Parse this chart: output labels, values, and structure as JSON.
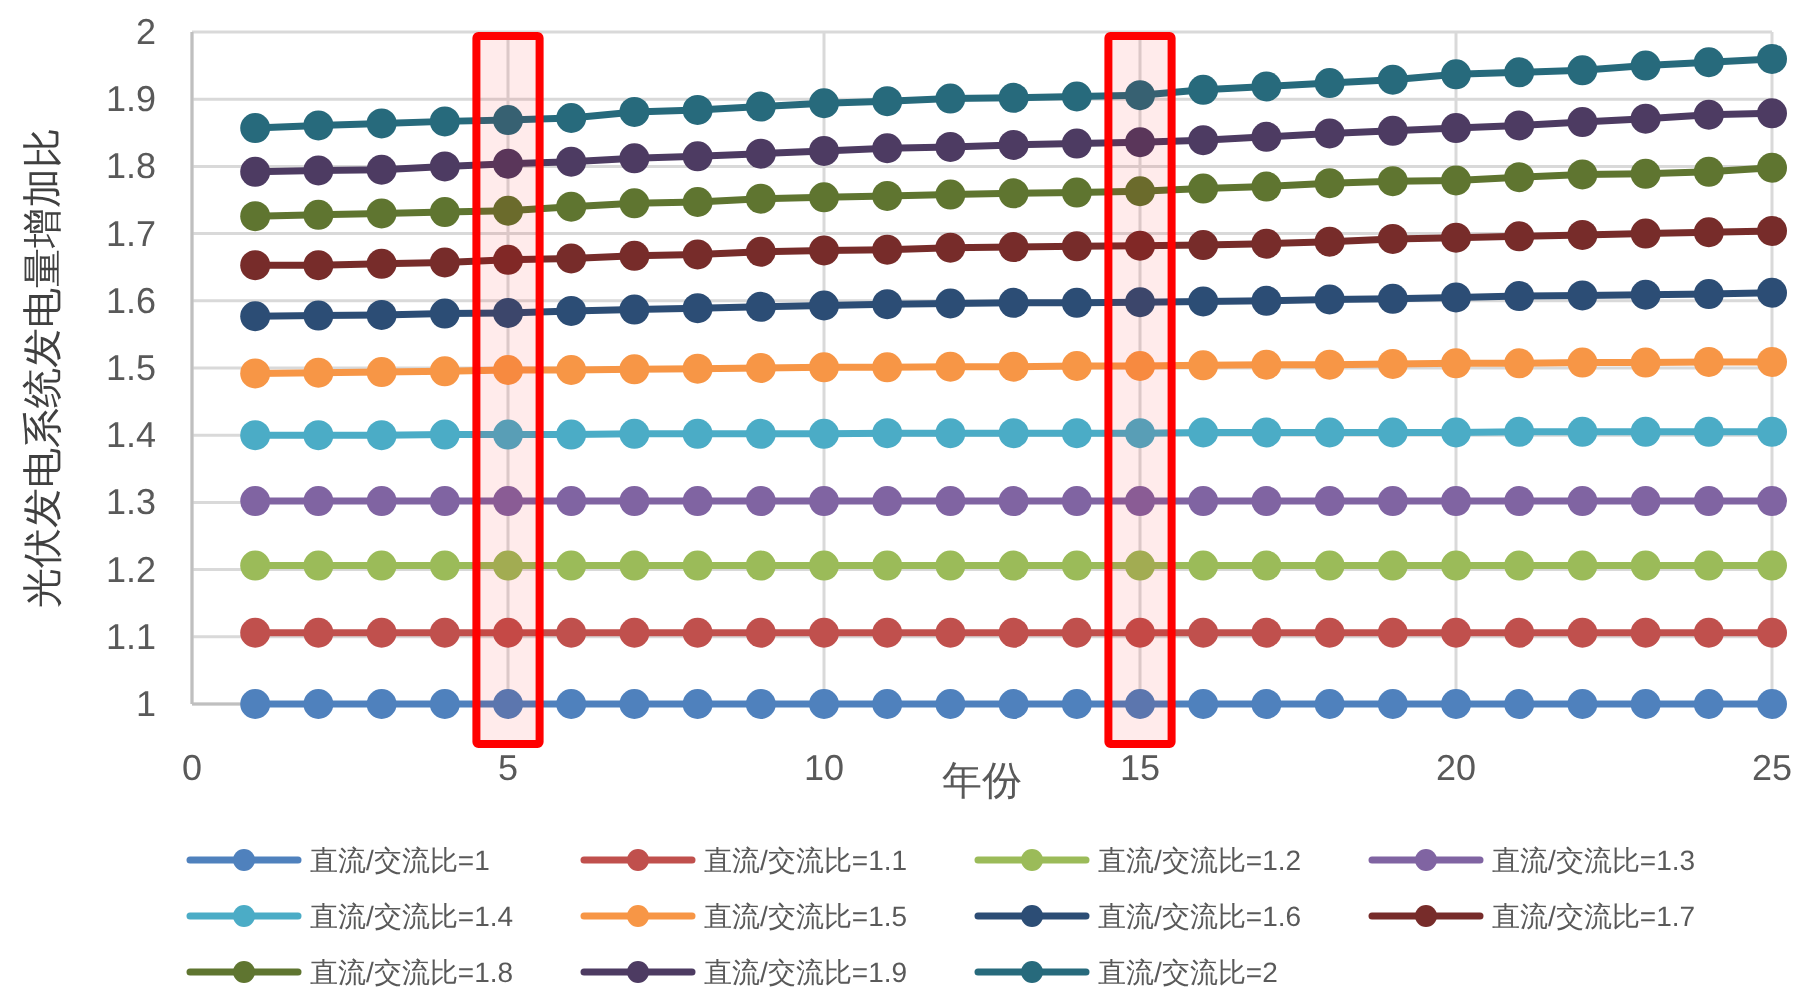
{
  "chart_data": {
    "type": "line",
    "xlabel": "年份",
    "ylabel": "光伏发电系统发电量增加比",
    "x": [
      1,
      2,
      3,
      4,
      5,
      6,
      7,
      8,
      9,
      10,
      11,
      12,
      13,
      14,
      15,
      16,
      17,
      18,
      19,
      20,
      21,
      22,
      23,
      24,
      25
    ],
    "xlim": [
      0,
      25
    ],
    "xticks": [
      0,
      5,
      10,
      15,
      20,
      25
    ],
    "ylim": [
      1,
      2
    ],
    "yticks": [
      1,
      1.1,
      1.2,
      1.3,
      1.4,
      1.5,
      1.6,
      1.7,
      1.8,
      1.9,
      2
    ],
    "grid": true,
    "legend": "bottom",
    "marker": "circle",
    "line_style": "solid",
    "bands": [
      {
        "axis": "x",
        "from": 4.5,
        "to": 5.5,
        "color": "#ff0000"
      },
      {
        "axis": "x",
        "from": 14.5,
        "to": 15.5,
        "color": "#ff0000"
      }
    ],
    "series": [
      {
        "name": "直流/交流比=1",
        "color": "#4f81bd",
        "values": [
          1,
          1,
          1,
          1,
          1,
          1,
          1,
          1,
          1,
          1,
          1,
          1,
          1,
          1,
          1,
          1,
          1,
          1,
          1,
          1,
          1,
          1,
          1,
          1,
          1
        ]
      },
      {
        "name": "直流/交流比=1.1",
        "color": "#c0504d",
        "values": [
          1.106,
          1.106,
          1.106,
          1.106,
          1.106,
          1.106,
          1.106,
          1.106,
          1.106,
          1.106,
          1.106,
          1.106,
          1.106,
          1.106,
          1.106,
          1.106,
          1.106,
          1.106,
          1.106,
          1.106,
          1.106,
          1.106,
          1.106,
          1.106,
          1.106
        ]
      },
      {
        "name": "直流/交流比=1.2",
        "color": "#9bbb59",
        "values": [
          1.206,
          1.206,
          1.206,
          1.206,
          1.206,
          1.206,
          1.206,
          1.206,
          1.206,
          1.206,
          1.206,
          1.206,
          1.206,
          1.206,
          1.206,
          1.206,
          1.206,
          1.206,
          1.206,
          1.206,
          1.206,
          1.206,
          1.206,
          1.206,
          1.206
        ]
      },
      {
        "name": "直流/交流比=1.3",
        "color": "#8064a2",
        "values": [
          1.302,
          1.302,
          1.302,
          1.302,
          1.302,
          1.302,
          1.302,
          1.302,
          1.302,
          1.302,
          1.302,
          1.302,
          1.302,
          1.302,
          1.302,
          1.302,
          1.302,
          1.302,
          1.302,
          1.302,
          1.302,
          1.302,
          1.302,
          1.302,
          1.302
        ]
      },
      {
        "name": "直流/交流比=1.4",
        "color": "#4bacc6",
        "values": [
          1.4,
          1.4,
          1.4,
          1.401,
          1.401,
          1.401,
          1.402,
          1.402,
          1.402,
          1.402,
          1.403,
          1.403,
          1.403,
          1.403,
          1.403,
          1.404,
          1.404,
          1.404,
          1.404,
          1.404,
          1.405,
          1.405,
          1.405,
          1.405,
          1.405
        ]
      },
      {
        "name": "直流/交流比=1.5",
        "color": "#f79646",
        "values": [
          1.492,
          1.493,
          1.494,
          1.495,
          1.497,
          1.497,
          1.498,
          1.499,
          1.5,
          1.501,
          1.501,
          1.502,
          1.502,
          1.503,
          1.503,
          1.504,
          1.505,
          1.505,
          1.506,
          1.507,
          1.507,
          1.508,
          1.508,
          1.509,
          1.509
        ]
      },
      {
        "name": "直流/交流比=1.6",
        "color": "#2c4d75",
        "values": [
          1.577,
          1.578,
          1.579,
          1.581,
          1.582,
          1.585,
          1.587,
          1.589,
          1.591,
          1.593,
          1.595,
          1.596,
          1.597,
          1.597,
          1.598,
          1.599,
          1.6,
          1.602,
          1.603,
          1.605,
          1.607,
          1.608,
          1.609,
          1.61,
          1.612
        ]
      },
      {
        "name": "直流/交流比=1.7",
        "color": "#772c2a",
        "values": [
          1.653,
          1.653,
          1.655,
          1.657,
          1.661,
          1.663,
          1.667,
          1.669,
          1.673,
          1.675,
          1.676,
          1.679,
          1.68,
          1.681,
          1.682,
          1.683,
          1.685,
          1.688,
          1.692,
          1.694,
          1.696,
          1.698,
          1.7,
          1.702,
          1.704
        ]
      },
      {
        "name": "直流/交流比=1.8",
        "color": "#5f7530",
        "values": [
          1.726,
          1.728,
          1.73,
          1.732,
          1.734,
          1.74,
          1.745,
          1.747,
          1.752,
          1.754,
          1.756,
          1.758,
          1.76,
          1.761,
          1.763,
          1.767,
          1.77,
          1.775,
          1.778,
          1.779,
          1.784,
          1.788,
          1.789,
          1.792,
          1.798
        ]
      },
      {
        "name": "直流/交流比=1.9",
        "color": "#4d3b62",
        "values": [
          1.792,
          1.794,
          1.795,
          1.8,
          1.804,
          1.807,
          1.812,
          1.815,
          1.819,
          1.823,
          1.827,
          1.829,
          1.832,
          1.834,
          1.836,
          1.839,
          1.844,
          1.849,
          1.853,
          1.857,
          1.861,
          1.866,
          1.871,
          1.877,
          1.879
        ]
      },
      {
        "name": "直流/交流比=2",
        "color": "#276a7c",
        "values": [
          1.857,
          1.861,
          1.864,
          1.867,
          1.869,
          1.872,
          1.881,
          1.884,
          1.889,
          1.894,
          1.897,
          1.901,
          1.902,
          1.904,
          1.906,
          1.914,
          1.919,
          1.924,
          1.929,
          1.937,
          1.94,
          1.943,
          1.95,
          1.955,
          1.96
        ]
      }
    ]
  }
}
